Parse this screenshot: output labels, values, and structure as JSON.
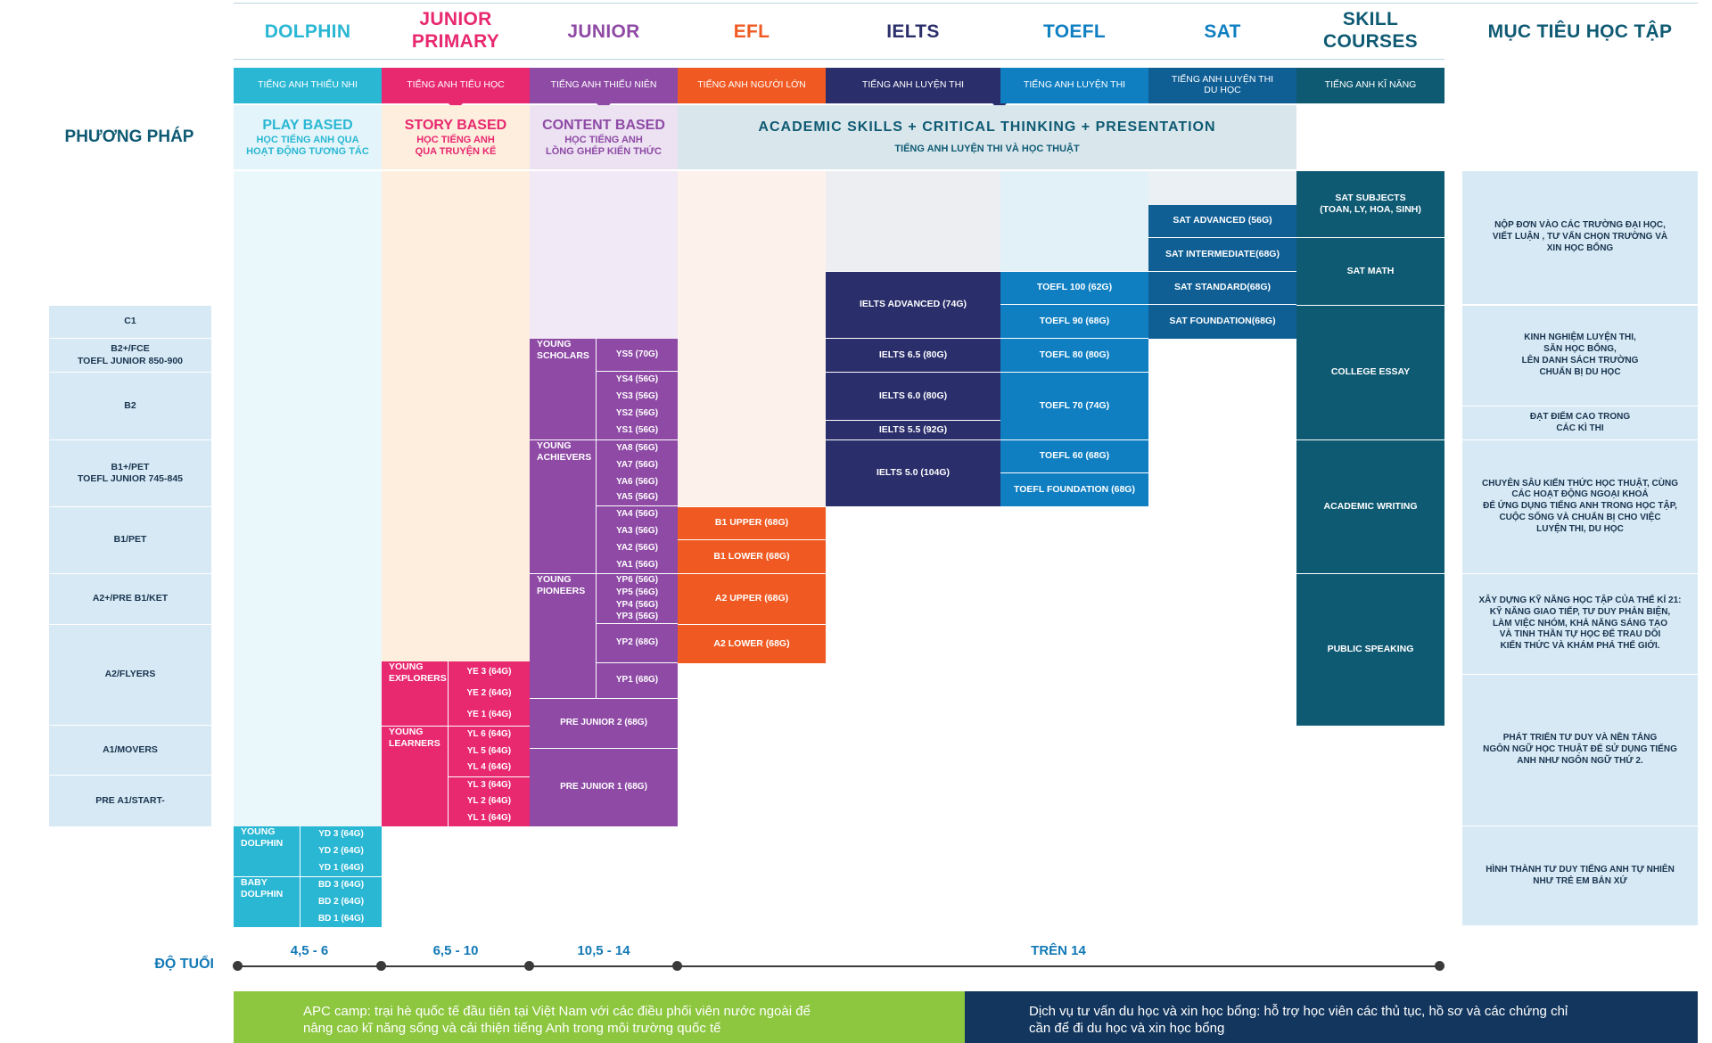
{
  "columns": {
    "dolphin": {
      "name": "DOLPHIN",
      "sub": "TIẾNG ANH THIẾU NHI"
    },
    "junior_primary": {
      "name_1": "JUNIOR",
      "name_2": "PRIMARY",
      "sub": "TIẾNG ANH TIỂU HỌC"
    },
    "junior": {
      "name": "JUNIOR",
      "sub": "TIẾNG ANH THIẾU NIÊN"
    },
    "efl": {
      "name": "EFL",
      "sub": "TIẾNG ANH NGƯỜI LỚN"
    },
    "ielts": {
      "name": "IELTS",
      "sub": "TIẾNG ANH LUYỆN THI"
    },
    "toefl": {
      "name": "TOEFL",
      "sub": "TIẾNG ANH LUYỆN THI"
    },
    "sat": {
      "name": "SAT",
      "sub_1": "TIẾNG ANH LUYỆN THI",
      "sub_2": "DU HỌC"
    },
    "skill": {
      "name_1": "SKILL",
      "name_2": "COURSES",
      "sub": "TIẾNG ANH KĨ NĂNG"
    },
    "goals": {
      "name": "MỤC TIÊU HỌC TẬP"
    }
  },
  "method": {
    "label": "PHƯƠNG PHÁP",
    "play": {
      "title": "PLAY BASED",
      "sub_1": "HỌC TIẾNG ANH QUA",
      "sub_2": "HOẠT ĐỘNG TƯƠNG TÁC"
    },
    "story": {
      "title": "STORY BASED",
      "sub_1": "HỌC TIẾNG ANH",
      "sub_2": "QUA TRUYỆN KỂ"
    },
    "content": {
      "title": "CONTENT BASED",
      "sub_1": "HỌC TIẾNG ANH",
      "sub_2": "LỒNG GHÉP KIẾN THỨC"
    },
    "academic": {
      "title": "ACADEMIC SKILLS + CRITICAL THINKING + PRESENTATION",
      "sub": "TIẾNG ANH LUYỆN THI VÀ HỌC THUẬT"
    }
  },
  "cefr": {
    "c1": "C1",
    "b2fce_1": "B2+/FCE",
    "b2fce_2": "TOEFL JUNIOR 850-900",
    "b2": "B2",
    "b1pet_1": "B1+/PET",
    "b1pet_2": "TOEFL JUNIOR 745-845",
    "b1": "B1/PET",
    "a2ket": "A2+/PRE B1/KET",
    "a2": "A2/FLYERS",
    "a1": "A1/MOVERS",
    "prea1": "PRE A1/START-"
  },
  "dolphin_levels": {
    "young_1": "YOUNG",
    "young_2": "DOLPHIN",
    "baby_1": "BABY",
    "baby_2": "DOLPHIN",
    "yd3": "YD 3 (64G)",
    "yd2": "YD 2 (64G)",
    "yd1": "YD 1 (64G)",
    "bd3": "BD 3 (64G)",
    "bd2": "BD 2 (64G)",
    "bd1": "BD 1 (64G)"
  },
  "primary_levels": {
    "explorers_1": "YOUNG",
    "explorers_2": "EXPLORERS",
    "learners_1": "YOUNG",
    "learners_2": "LEARNERS",
    "ye3": "YE 3 (64G)",
    "ye2": "YE 2 (64G)",
    "ye1": "YE 1 (64G)",
    "yl6": "YL 6 (64G)",
    "yl5": "YL 5 (64G)",
    "yl4": "YL 4 (64G)",
    "yl3": "YL 3 (64G)",
    "yl2": "YL 2 (64G)",
    "yl1": "YL 1 (64G)"
  },
  "junior_levels": {
    "scholars_1": "YOUNG",
    "scholars_2": "SCHOLARS",
    "achievers_1": "YOUNG",
    "achievers_2": "ACHIEVERS",
    "pioneers_1": "YOUNG",
    "pioneers_2": "PIONEERS",
    "ys5": "YS5 (70G)",
    "ys4": "YS4 (56G)",
    "ys3": "YS3 (56G)",
    "ys2": "YS2 (56G)",
    "ys1": "YS1 (56G)",
    "ya8": "YA8 (56G)",
    "ya7": "YA7 (56G)",
    "ya6": "YA6 (56G)",
    "ya5": "YA5 (56G)",
    "ya4": "YA4 (56G)",
    "ya3": "YA3 (56G)",
    "ya2": "YA2 (56G)",
    "ya1": "YA1 (56G)",
    "yp6": "YP6 (56G)",
    "yp5": "YP5 (56G)",
    "yp4": "YP4 (56G)",
    "yp3": "YP3 (56G)",
    "yp2": "YP2 (68G)",
    "yp1": "YP1 (68G)",
    "prej2": "PRE JUNIOR 2 (68G)",
    "prej1": "PRE JUNIOR 1 (68G)"
  },
  "efl_levels": {
    "b1u": "B1 UPPER (68G)",
    "b1l": "B1 LOWER (68G)",
    "a2u": "A2 UPPER (68G)",
    "a2l": "A2 LOWER (68G)"
  },
  "ielts_levels": {
    "adv": "IELTS ADVANCED (74G)",
    "i65": "IELTS 6.5 (80G)",
    "i60": "IELTS 6.0 (80G)",
    "i55": "IELTS 5.5 (92G)",
    "i50": "IELTS 5.0 (104G)"
  },
  "toefl_levels": {
    "t100": "TOEFL 100 (62G)",
    "t90": "TOEFL 90 (68G)",
    "t80": "TOEFL 80 (80G)",
    "t70": "TOEFL 70 (74G)",
    "t60": "TOEFL 60 (68G)",
    "tf": "TOEFL FOUNDATION (68G)"
  },
  "sat_levels": {
    "adv": "SAT ADVANCED (56G)",
    "inter": "SAT INTERMEDIATE(68G)",
    "std": "SAT STANDARD(68G)",
    "found": "SAT FOUNDATION(68G)"
  },
  "skill_levels": {
    "subj_1": "SAT SUBJECTS",
    "subj_2": "(TOAN, LY, HOA, SINH)",
    "math": "SAT MATH",
    "essay": "COLLEGE ESSAY",
    "writing": "ACADEMIC WRITING",
    "speaking": "PUBLIC SPEAKING"
  },
  "goals": {
    "g1_1": "NỘP ĐƠN VÀO CÁC TRƯỜNG ĐẠI HỌC,",
    "g1_2": "VIẾT LUẬN , TƯ VẤN CHỌN TRƯỜNG VÀ",
    "g1_3": "XIN HỌC BỔNG",
    "g2_1": "KINH NGHIỆM LUYỆN THI,",
    "g2_2": "SĂN HỌC BỔNG,",
    "g2_3": "LÊN DANH SÁCH TRƯỜNG",
    "g2_4": "CHUẨN BỊ DU HỌC",
    "g3_1": "ĐẠT ĐIỂM CAO TRONG",
    "g3_2": "CÁC KÌ THI",
    "g4_1": "CHUYÊN SÂU KIẾN THỨC HỌC THUẬT, CÙNG",
    "g4_2": "CÁC HOẠT ĐỘNG NGOẠI KHOÁ",
    "g4_3": "ĐỂ ỨNG DỤNG TIẾNG ANH TRONG HỌC TẬP,",
    "g4_4": "CUỘC SỐNG VÀ CHUẨN BỊ CHO VIỆC",
    "g4_5": "LUYỆN THI, DU HỌC",
    "g5_1": "XÂY DỰNG KỸ NĂNG HỌC TẬP CỦA THẾ KỈ 21:",
    "g5_2": "KỸ NĂNG GIAO TIẾP, TƯ DUY PHẢN BIỆN,",
    "g5_3": "LÀM VIỆC NHÓM, KHẢ NĂNG SÁNG TẠO",
    "g5_4": "VÀ TINH THẦN TỰ HỌC ĐỂ TRAU DỒI",
    "g5_5": "KIẾN THỨC VÀ KHÁM PHÁ THẾ GIỚI.",
    "g6_1": "PHÁT TRIỂN TƯ DUY VÀ NỀN TẢNG",
    "g6_2": "NGÔN NGỮ HỌC THUẬT ĐỂ SỬ DỤNG TIẾNG",
    "g6_3": "ANH NHƯ NGÔN NGỮ THỨ 2.",
    "g7_1": "HÌNH THÀNH TƯ DUY TIẾNG ANH TỰ NHIÊN",
    "g7_2": "NHƯ TRẺ EM BẢN XỨ"
  },
  "age": {
    "label": "ĐỘ TUỔI",
    "r1": "4,5 - 6",
    "r2": "6,5 - 10",
    "r3": "10,5 - 14",
    "r4": "TRÊN 14"
  },
  "bottom": {
    "camp_1": "APC camp: trại hè quốc tế đầu tiên tại Việt Nam với các điều phối viên nước ngoài để",
    "camp_2": "nâng cao kĩ năng sống và cải thiện tiếng Anh trong môi trường quốc tế",
    "study_1": "Dịch vụ tư vấn du học và xin học bổng: hỗ trợ học viên các thủ tục, hồ sơ và các chứng chỉ",
    "study_2": "cần để đi du học và xin học bổng"
  },
  "colors": {
    "dolphin": "#2ab7d4",
    "primary": "#e8286f",
    "junior": "#8e4aa5",
    "efl": "#f05a22",
    "ielts": "#2a2e6b",
    "toefl": "#0f7fc2",
    "sat": "#0f5f95",
    "skill": "#0f5a73",
    "camp": "#8dc63f",
    "study": "#13365e"
  }
}
